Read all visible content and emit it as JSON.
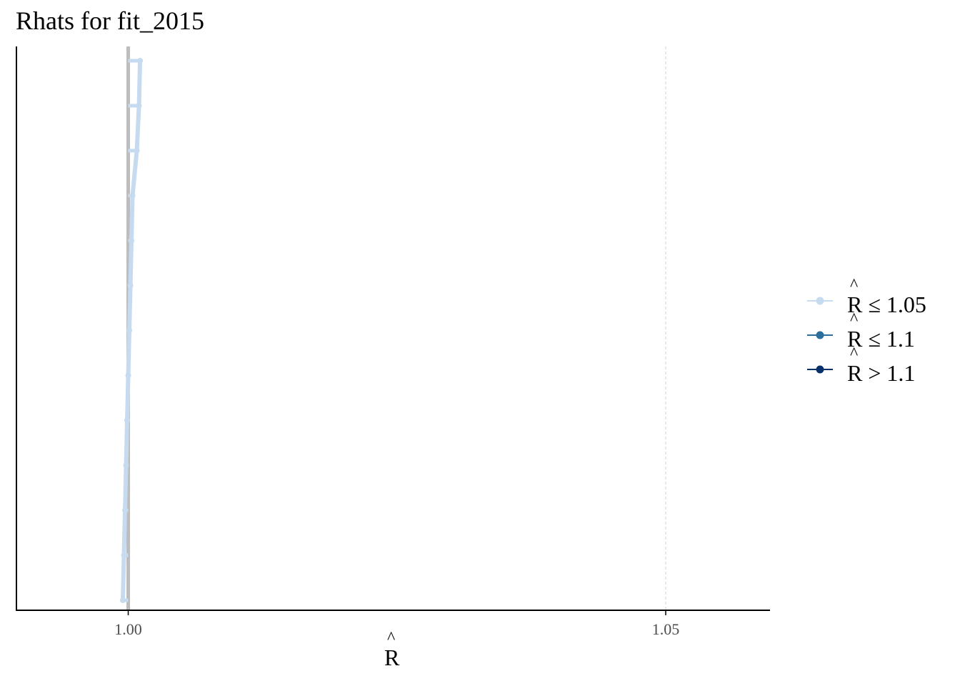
{
  "chart_data": {
    "type": "line",
    "title": "Rhats for fit_2015",
    "xlabel": "R̂",
    "xlim": [
      0.9896,
      1.0597
    ],
    "x_ticks": [
      1.0,
      1.05
    ],
    "x_tick_labels": [
      "1.00",
      "1.05"
    ],
    "reference_lines": [
      {
        "x": 1.0,
        "style": "solid",
        "color": "#bdbdbd"
      },
      {
        "x": 1.05,
        "style": "dashed",
        "color": "#d9d9d9"
      }
    ],
    "series": [
      {
        "name": "R̂ ≤ 1.05",
        "color": "#c6dbef",
        "values": [
          0.9995,
          0.9996,
          0.9997,
          0.9998,
          0.9999,
          1.0,
          1.0001,
          1.0002,
          1.0003,
          1.0004,
          1.0008,
          1.001,
          1.0011
        ]
      },
      {
        "name": "R̂ ≤ 1.1",
        "color": "#2b6f9e",
        "values": []
      },
      {
        "name": "R̂ > 1.1",
        "color": "#08306b",
        "values": []
      }
    ],
    "legend_position": "right",
    "grid": false
  },
  "legend": {
    "items": [
      {
        "hat": "^",
        "r": "R",
        "op": "≤",
        "val": "1.05"
      },
      {
        "hat": "^",
        "r": "R",
        "op": "≤",
        "val": "1.1"
      },
      {
        "hat": "^",
        "r": "R",
        "op": ">",
        "val": "1.1"
      }
    ]
  },
  "x_axis_title": {
    "hat": "^",
    "r": "R"
  }
}
